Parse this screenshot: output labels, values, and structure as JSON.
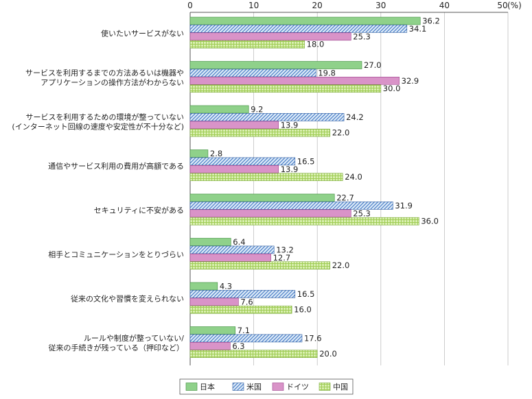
{
  "chart_data": {
    "type": "bar",
    "orientation": "horizontal",
    "unit_label": "(%)",
    "xlim": [
      0,
      50
    ],
    "x_ticks": [
      "0",
      "10",
      "20",
      "30",
      "40",
      "50"
    ],
    "grid": true,
    "legend_position": "bottom-center",
    "categories": [
      [
        "使いたいサービスがない"
      ],
      [
        "サービスを利用するまでの方法あるいは機器や",
        "アプリケーションの操作方法がわからない"
      ],
      [
        "サービスを利用するための環境が整っていない",
        "(インターネット回線の速度や安定性が不十分など)"
      ],
      [
        "通信やサービス利用の費用が高額である"
      ],
      [
        "セキュリティに不安がある"
      ],
      [
        "相手とコミュニケーションをとりづらい"
      ],
      [
        "従来の文化や習慣を変えられない"
      ],
      [
        "ルールや制度が整っていない/",
        "従来の手続きが残っている（押印など）"
      ]
    ],
    "series": [
      {
        "name": "日本",
        "pattern": "solid",
        "color": "#8fd18a",
        "values": [
          36.2,
          27.0,
          9.2,
          2.8,
          22.7,
          6.4,
          4.3,
          7.1
        ]
      },
      {
        "name": "米国",
        "pattern": "diagonal",
        "color": "#4a7fc9",
        "values": [
          34.1,
          19.8,
          24.2,
          16.5,
          31.9,
          13.2,
          16.5,
          17.6
        ]
      },
      {
        "name": "ドイツ",
        "pattern": "solid",
        "color": "#d993c8",
        "values": [
          25.3,
          32.9,
          13.9,
          13.9,
          25.3,
          12.7,
          7.6,
          6.3
        ]
      },
      {
        "name": "中国",
        "pattern": "grid",
        "color": "#b9dc79",
        "values": [
          18.0,
          30.0,
          22.0,
          24.0,
          36.0,
          22.0,
          16.0,
          20.0
        ]
      }
    ]
  }
}
